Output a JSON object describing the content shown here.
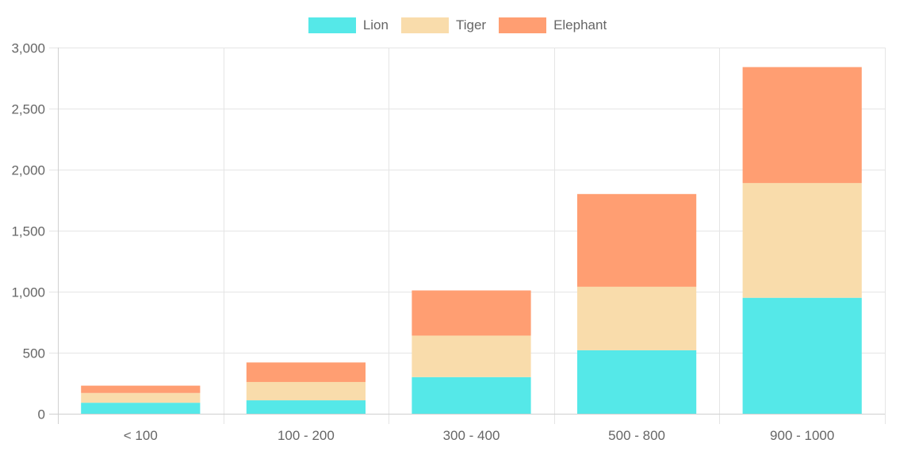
{
  "chart_data": {
    "type": "bar",
    "stacked": true,
    "title": "",
    "xlabel": "",
    "ylabel": "",
    "categories": [
      "<  100",
      "100 - 200",
      "300 - 400",
      "500 - 800",
      "900 - 1000"
    ],
    "series": [
      {
        "name": "Lion",
        "color": "#55E8E8",
        "values": [
          90,
          110,
          300,
          520,
          950
        ]
      },
      {
        "name": "Tiger",
        "color": "#F9DCAB",
        "values": [
          80,
          150,
          340,
          520,
          940
        ]
      },
      {
        "name": "Elephant",
        "color": "#FF9E72",
        "values": [
          60,
          160,
          370,
          760,
          950
        ]
      }
    ],
    "ylim": [
      0,
      3000
    ],
    "yticks": [
      0,
      500,
      1000,
      1500,
      2000,
      2500,
      3000
    ],
    "ytick_labels": [
      "0",
      "500",
      "1,000",
      "1,500",
      "2,000",
      "2,500",
      "3,000"
    ],
    "grid": true,
    "legend_position": "top"
  },
  "legend": {
    "items": [
      {
        "label": "Lion",
        "color": "#55E8E8"
      },
      {
        "label": "Tiger",
        "color": "#F9DCAB"
      },
      {
        "label": "Elephant",
        "color": "#FF9E72"
      }
    ]
  },
  "style": {
    "grid_color": "#E5E5E5",
    "axis_color": "#D0D0D0",
    "tick_label_color": "#666666"
  }
}
